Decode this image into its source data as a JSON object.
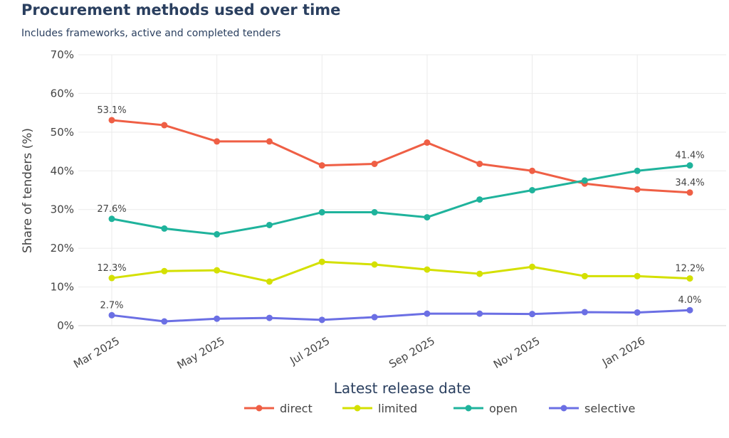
{
  "header": {
    "title": "Procurement methods used over time",
    "subtitle": "Includes frameworks, active and completed tenders"
  },
  "chart_data": {
    "type": "line",
    "title": "Procurement methods used over time",
    "subtitle": "Includes frameworks, active and completed tenders",
    "xlabel": "Latest release date",
    "ylabel": "Share of tenders (%)",
    "ylim": [
      0,
      70
    ],
    "yticks": [
      0,
      10,
      20,
      30,
      40,
      50,
      60,
      70
    ],
    "ytick_labels": [
      "0%",
      "10%",
      "20%",
      "30%",
      "40%",
      "50%",
      "60%",
      "70%"
    ],
    "x": [
      "2025-03",
      "2025-04",
      "2025-05",
      "2025-06",
      "2025-07",
      "2025-08",
      "2025-09",
      "2025-10",
      "2025-11",
      "2025-12",
      "2026-01",
      "2026-02"
    ],
    "xtick_labels": [
      {
        "index": 0,
        "label": "Mar 2025"
      },
      {
        "index": 2,
        "label": "May 2025"
      },
      {
        "index": 4,
        "label": "Jul 2025"
      },
      {
        "index": 6,
        "label": "Sep 2025"
      },
      {
        "index": 8,
        "label": "Nov 2025"
      },
      {
        "index": 10,
        "label": "Jan 2026"
      }
    ],
    "grid": true,
    "legend_position": "bottom-center",
    "series": [
      {
        "name": "direct",
        "color": "#ef5f45",
        "values": [
          53.1,
          51.8,
          47.6,
          47.6,
          41.4,
          41.8,
          47.3,
          41.8,
          40.0,
          36.7,
          35.2,
          34.4
        ],
        "labels": {
          "first": "53.1%",
          "last": "34.4%"
        }
      },
      {
        "name": "limited",
        "color": "#d4e000",
        "values": [
          12.3,
          14.1,
          14.3,
          11.4,
          16.5,
          15.8,
          14.5,
          13.4,
          15.2,
          12.8,
          12.8,
          12.2
        ],
        "labels": {
          "first": "12.3%",
          "last": "12.2%"
        }
      },
      {
        "name": "open",
        "color": "#1fb39c",
        "values": [
          27.6,
          25.1,
          23.6,
          26.0,
          29.3,
          29.3,
          28.0,
          32.6,
          35.0,
          37.5,
          40.0,
          41.4
        ],
        "labels": {
          "first": "27.6%",
          "last": "41.4%"
        }
      },
      {
        "name": "selective",
        "color": "#6b6fe4",
        "values": [
          2.7,
          1.1,
          1.8,
          2.0,
          1.5,
          2.2,
          3.1,
          3.1,
          3.0,
          3.5,
          3.4,
          4.0
        ],
        "labels": {
          "first": "2.7%",
          "last": "4.0%"
        }
      }
    ]
  }
}
